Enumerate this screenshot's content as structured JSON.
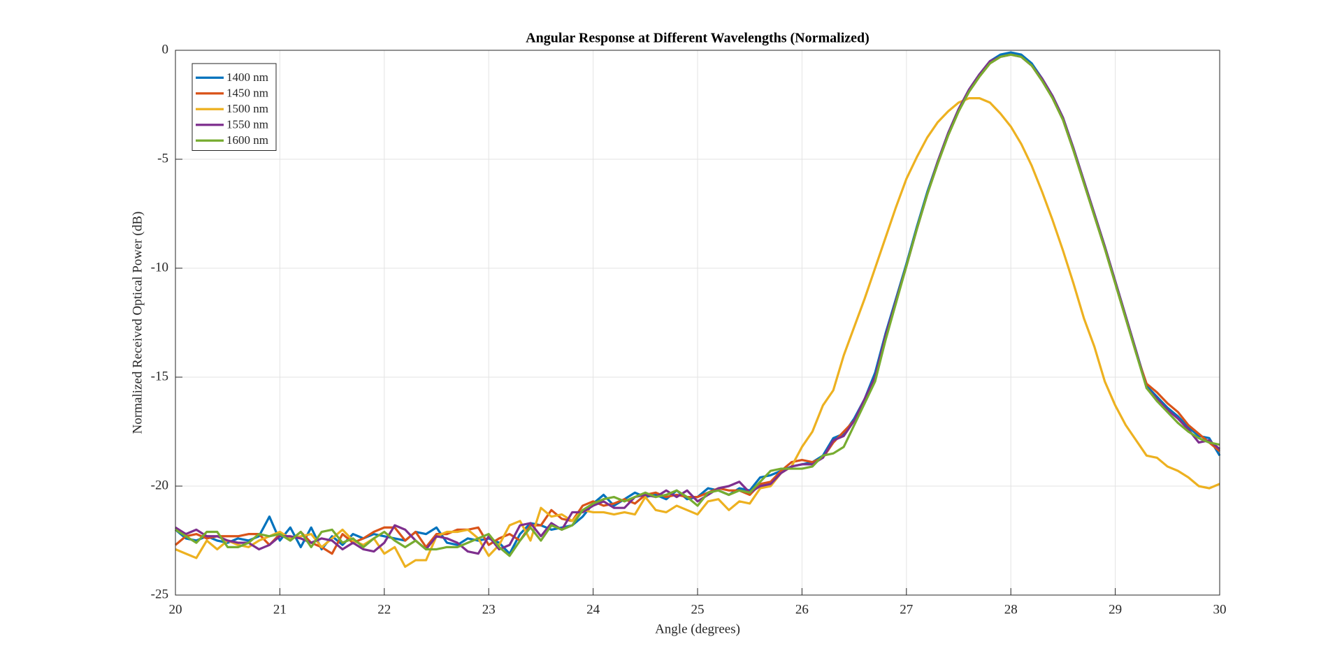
{
  "chart_data": {
    "type": "line",
    "title": "Angular Response at Different Wavelengths (Normalized)",
    "xlabel": "Angle (degrees)",
    "ylabel": "Normalized Received Optical Power (dB)",
    "xlim": [
      20,
      30
    ],
    "ylim": [
      -25,
      0
    ],
    "xticks": [
      20,
      21,
      22,
      23,
      24,
      25,
      26,
      27,
      28,
      29,
      30
    ],
    "yticks": [
      -25,
      -20,
      -15,
      -10,
      -5,
      0
    ],
    "grid": true,
    "legend": "upper left",
    "x": [
      20.0,
      20.1,
      20.2,
      20.3,
      20.4,
      20.5,
      20.6,
      20.7,
      20.8,
      20.9,
      21.0,
      21.1,
      21.2,
      21.3,
      21.4,
      21.5,
      21.6,
      21.7,
      21.8,
      21.9,
      22.0,
      22.1,
      22.2,
      22.3,
      22.4,
      22.5,
      22.6,
      22.7,
      22.8,
      22.9,
      23.0,
      23.1,
      23.2,
      23.3,
      23.4,
      23.5,
      23.6,
      23.7,
      23.8,
      23.9,
      24.0,
      24.1,
      24.2,
      24.3,
      24.4,
      24.5,
      24.6,
      24.7,
      24.8,
      24.9,
      25.0,
      25.1,
      25.2,
      25.3,
      25.4,
      25.5,
      25.6,
      25.7,
      25.8,
      25.9,
      26.0,
      26.1,
      26.2,
      26.3,
      26.4,
      26.5,
      26.6,
      26.7,
      26.8,
      26.9,
      27.0,
      27.1,
      27.2,
      27.3,
      27.4,
      27.5,
      27.6,
      27.7,
      27.8,
      27.9,
      28.0,
      28.1,
      28.2,
      28.3,
      28.4,
      28.5,
      28.6,
      28.7,
      28.8,
      28.9,
      29.0,
      29.1,
      29.2,
      29.3,
      29.4,
      29.5,
      29.6,
      29.7,
      29.8,
      29.9,
      30.0
    ],
    "series": [
      {
        "name": "1400 nm",
        "color": "#0072bd",
        "values": [
          -22.0,
          -22.4,
          -22.5,
          -22.3,
          -22.5,
          -22.6,
          -22.4,
          -22.5,
          -22.3,
          -21.4,
          -22.5,
          -21.9,
          -22.8,
          -21.9,
          -22.9,
          -22.3,
          -22.7,
          -22.2,
          -22.4,
          -22.2,
          -22.3,
          -22.4,
          -22.5,
          -22.1,
          -22.2,
          -21.9,
          -22.6,
          -22.7,
          -22.4,
          -22.5,
          -22.4,
          -22.6,
          -23.1,
          -22.2,
          -21.7,
          -21.8,
          -22.0,
          -21.9,
          -21.8,
          -21.4,
          -20.8,
          -20.4,
          -20.9,
          -20.6,
          -20.3,
          -20.5,
          -20.4,
          -20.6,
          -20.2,
          -20.6,
          -20.5,
          -20.1,
          -20.2,
          -20.4,
          -20.1,
          -20.2,
          -19.6,
          -19.5,
          -19.3,
          -19.1,
          -19.0,
          -18.9,
          -18.6,
          -17.8,
          -17.6,
          -16.9,
          -16.0,
          -14.8,
          -13.0,
          -11.4,
          -9.8,
          -8.1,
          -6.5,
          -5.1,
          -3.8,
          -2.7,
          -1.8,
          -1.1,
          -0.5,
          -0.2,
          -0.1,
          -0.2,
          -0.6,
          -1.3,
          -2.1,
          -3.1,
          -4.5,
          -6.0,
          -7.5,
          -9.0,
          -10.6,
          -12.2,
          -13.8,
          -15.4,
          -15.9,
          -16.4,
          -16.8,
          -17.3,
          -17.7,
          -17.8,
          -18.6
        ]
      },
      {
        "name": "1450 nm",
        "color": "#d95319",
        "values": [
          -22.7,
          -22.3,
          -22.2,
          -22.4,
          -22.3,
          -22.3,
          -22.3,
          -22.2,
          -22.2,
          -22.7,
          -22.2,
          -22.5,
          -22.1,
          -22.6,
          -22.8,
          -23.1,
          -22.2,
          -22.6,
          -22.4,
          -22.1,
          -21.9,
          -21.9,
          -22.5,
          -22.1,
          -22.8,
          -22.2,
          -22.2,
          -22.0,
          -22.0,
          -21.9,
          -22.7,
          -22.4,
          -22.2,
          -22.5,
          -21.8,
          -21.8,
          -21.1,
          -21.5,
          -21.6,
          -20.9,
          -20.7,
          -20.9,
          -20.8,
          -20.6,
          -20.8,
          -20.4,
          -20.3,
          -20.5,
          -20.4,
          -20.5,
          -20.5,
          -20.3,
          -20.1,
          -20.2,
          -20.2,
          -20.4,
          -19.9,
          -19.8,
          -19.3,
          -18.9,
          -18.8,
          -18.9,
          -18.7,
          -18.0,
          -17.5,
          -17.0,
          -16.1,
          -15.0,
          -13.2,
          -11.5,
          -9.9,
          -8.2,
          -6.6,
          -5.2,
          -3.9,
          -2.8,
          -1.9,
          -1.2,
          -0.6,
          -0.3,
          -0.2,
          -0.3,
          -0.7,
          -1.4,
          -2.2,
          -3.2,
          -4.6,
          -6.1,
          -7.6,
          -9.1,
          -10.7,
          -12.3,
          -13.9,
          -15.3,
          -15.7,
          -16.2,
          -16.6,
          -17.2,
          -17.6,
          -18.0,
          -18.4
        ]
      },
      {
        "name": "1500 nm",
        "color": "#edb120",
        "values": [
          -22.9,
          -23.1,
          -23.3,
          -22.5,
          -22.9,
          -22.5,
          -22.7,
          -22.8,
          -22.5,
          -22.3,
          -22.1,
          -22.4,
          -22.3,
          -22.2,
          -22.8,
          -22.4,
          -22.0,
          -22.5,
          -22.7,
          -22.4,
          -23.1,
          -22.8,
          -23.7,
          -23.4,
          -23.4,
          -22.3,
          -22.1,
          -22.1,
          -22.0,
          -22.4,
          -23.2,
          -22.7,
          -21.8,
          -21.6,
          -22.5,
          -21.0,
          -21.4,
          -21.3,
          -21.6,
          -21.1,
          -21.2,
          -21.2,
          -21.3,
          -21.2,
          -21.3,
          -20.5,
          -21.1,
          -21.2,
          -20.9,
          -21.1,
          -21.3,
          -20.7,
          -20.6,
          -21.1,
          -20.7,
          -20.8,
          -20.1,
          -20.0,
          -19.4,
          -19.1,
          -18.2,
          -17.5,
          -16.3,
          -15.6,
          -14.0,
          -12.7,
          -11.4,
          -10.0,
          -8.6,
          -7.2,
          -5.9,
          -4.9,
          -4.0,
          -3.3,
          -2.8,
          -2.4,
          -2.2,
          -2.2,
          -2.4,
          -2.9,
          -3.5,
          -4.3,
          -5.3,
          -6.5,
          -7.8,
          -9.2,
          -10.7,
          -12.3,
          -13.6,
          -15.2,
          -16.3,
          -17.2,
          -17.9,
          -18.6,
          -18.7,
          -19.1,
          -19.3,
          -19.6,
          -20.0,
          -20.1,
          -19.9
        ]
      },
      {
        "name": "1550 nm",
        "color": "#7e2f8e",
        "values": [
          -21.9,
          -22.2,
          -22.0,
          -22.3,
          -22.3,
          -22.5,
          -22.6,
          -22.6,
          -22.9,
          -22.7,
          -22.3,
          -22.3,
          -22.4,
          -22.6,
          -22.4,
          -22.5,
          -22.9,
          -22.6,
          -22.9,
          -23.0,
          -22.6,
          -21.8,
          -22.0,
          -22.5,
          -22.9,
          -22.3,
          -22.4,
          -22.6,
          -23.0,
          -23.1,
          -22.3,
          -22.9,
          -22.7,
          -21.8,
          -21.7,
          -22.3,
          -21.7,
          -22.0,
          -21.2,
          -21.2,
          -20.9,
          -20.7,
          -21.0,
          -21.0,
          -20.5,
          -20.4,
          -20.5,
          -20.2,
          -20.5,
          -20.2,
          -20.7,
          -20.4,
          -20.1,
          -20.0,
          -19.8,
          -20.3,
          -20.0,
          -19.9,
          -19.4,
          -19.1,
          -19.0,
          -19.0,
          -18.7,
          -17.9,
          -17.7,
          -17.0,
          -16.0,
          -15.0,
          -13.1,
          -11.5,
          -9.9,
          -8.2,
          -6.6,
          -5.1,
          -3.8,
          -2.7,
          -1.8,
          -1.1,
          -0.5,
          -0.3,
          -0.2,
          -0.3,
          -0.7,
          -1.3,
          -2.1,
          -3.1,
          -4.5,
          -6.0,
          -7.5,
          -9.0,
          -10.6,
          -12.2,
          -13.8,
          -15.5,
          -16.0,
          -16.5,
          -16.9,
          -17.4,
          -18.0,
          -17.9,
          -18.3
        ]
      },
      {
        "name": "1600 nm",
        "color": "#77ac30",
        "values": [
          -22.0,
          -22.3,
          -22.6,
          -22.1,
          -22.1,
          -22.8,
          -22.8,
          -22.6,
          -22.2,
          -22.3,
          -22.2,
          -22.5,
          -22.1,
          -22.8,
          -22.1,
          -22.0,
          -22.6,
          -22.4,
          -22.8,
          -22.4,
          -22.1,
          -22.5,
          -22.8,
          -22.5,
          -22.9,
          -22.9,
          -22.8,
          -22.8,
          -22.6,
          -22.4,
          -22.2,
          -22.8,
          -23.2,
          -22.5,
          -21.9,
          -22.5,
          -21.8,
          -22.0,
          -21.8,
          -21.1,
          -20.8,
          -20.6,
          -20.5,
          -20.7,
          -20.5,
          -20.3,
          -20.5,
          -20.4,
          -20.2,
          -20.5,
          -20.9,
          -20.3,
          -20.2,
          -20.4,
          -20.2,
          -20.3,
          -19.8,
          -19.3,
          -19.2,
          -19.2,
          -19.2,
          -19.1,
          -18.6,
          -18.5,
          -18.2,
          -17.2,
          -16.2,
          -15.2,
          -13.3,
          -11.6,
          -9.9,
          -8.2,
          -6.6,
          -5.2,
          -3.9,
          -2.8,
          -1.9,
          -1.2,
          -0.6,
          -0.3,
          -0.2,
          -0.3,
          -0.7,
          -1.4,
          -2.2,
          -3.2,
          -4.6,
          -6.1,
          -7.6,
          -9.1,
          -10.7,
          -12.3,
          -13.9,
          -15.5,
          -16.1,
          -16.6,
          -17.1,
          -17.5,
          -17.8,
          -18.0,
          -18.1
        ]
      }
    ]
  }
}
